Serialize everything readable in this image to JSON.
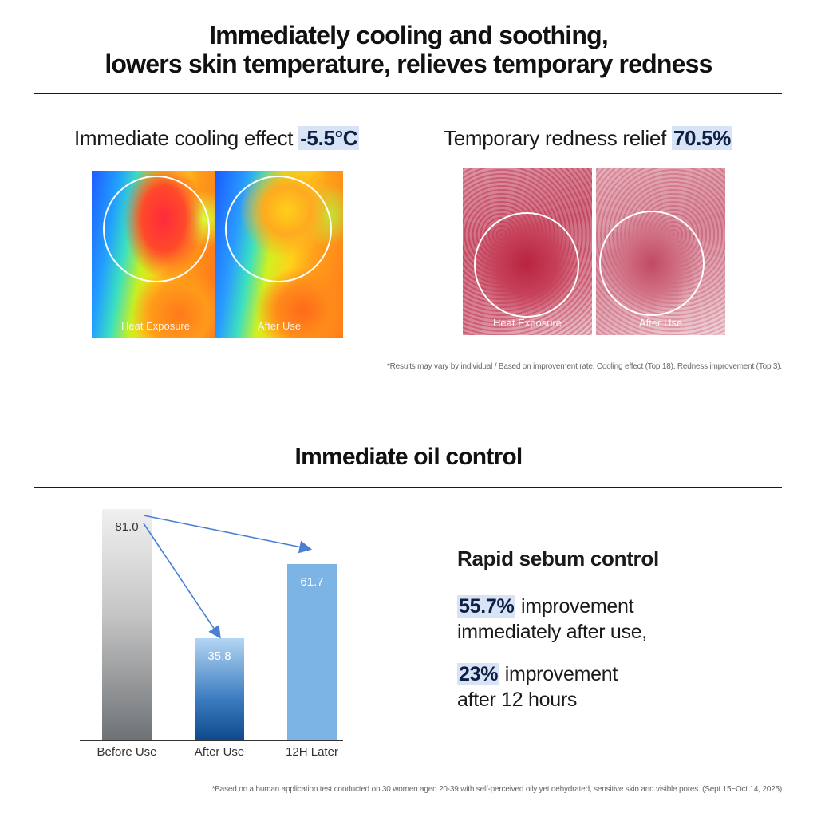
{
  "headline": {
    "line1": "Immediately cooling and soothing,",
    "line2": "lowers skin temperature, relieves temporary redness"
  },
  "cooling": {
    "label": "Immediate cooling effect ",
    "value": "-5.5°C",
    "before_label": "Heat Exposure",
    "after_label": "After Use"
  },
  "redness": {
    "label": "Temporary redness relief ",
    "value": "70.5%",
    "before_label": "Heat Exposure",
    "after_label": "After Use"
  },
  "note1": "*Results may vary by individual / Based on improvement rate: Cooling effect (Top 18), Redness improvement (Top 3).",
  "oil": {
    "title": "Immediate oil control"
  },
  "chart_data": {
    "type": "bar",
    "categories": [
      "Before Use",
      "After Use",
      "12H Later"
    ],
    "values": [
      81.0,
      35.8,
      61.7
    ],
    "value_labels": [
      "81.0",
      "35.8",
      "61.7"
    ],
    "colors": [
      "#9a9c9e",
      "#1f64ad",
      "#7db4e6"
    ]
  },
  "sebum": {
    "title": "Rapid sebum control",
    "stat1_value": "55.7%",
    "stat1_text_a": " improvement",
    "stat1_text_b": "immediately after use,",
    "stat2_value": "23%",
    "stat2_text_a": " improvement",
    "stat2_text_b": "after 12 hours"
  },
  "note2": "*Based on a human application test conducted on 30 women aged 20-39 with self-perceived oily yet dehydrated, sensitive skin and visible pores. (Sept 15~Oct 14, 2025)"
}
